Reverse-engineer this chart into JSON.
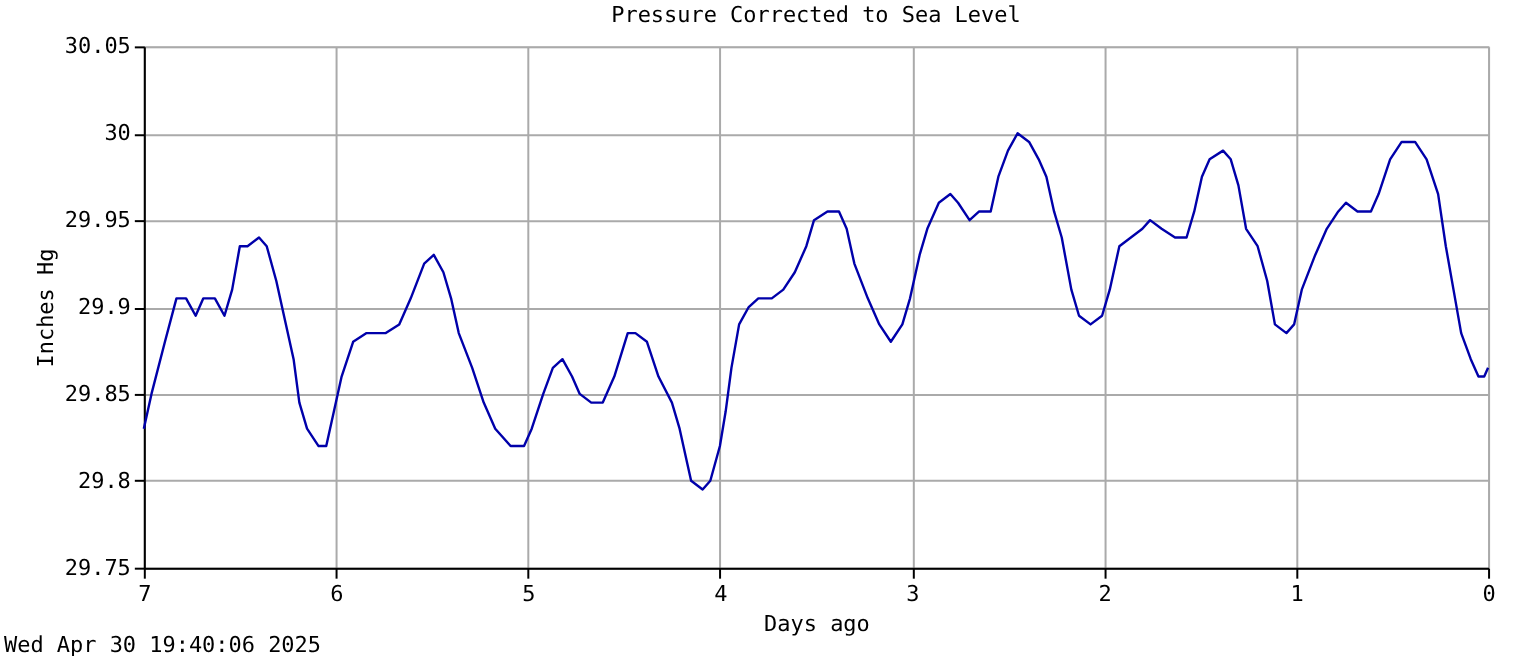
{
  "chart_data": {
    "type": "line",
    "title": "Pressure Corrected to Sea Level",
    "xlabel": "Days ago",
    "ylabel": "Inches Hg",
    "annotations": [
      "Wed Apr 30 19:40:06 2025"
    ],
    "xlim": [
      7,
      0
    ],
    "xticks": [
      7,
      6,
      5,
      4,
      3,
      2,
      1,
      0
    ],
    "ylim": [
      29.75,
      30.05
    ],
    "yticks": [
      29.75,
      29.8,
      29.85,
      29.9,
      29.95,
      30,
      30.05
    ],
    "grid": true,
    "line_style": "solid",
    "marker": "none",
    "series": [
      {
        "color": "#0000aa",
        "x": [
          7.0,
          6.96,
          6.89,
          6.83,
          6.78,
          6.73,
          6.69,
          6.63,
          6.58,
          6.54,
          6.5,
          6.46,
          6.4,
          6.36,
          6.31,
          6.26,
          6.22,
          6.19,
          6.15,
          6.09,
          6.05,
          6.01,
          5.97,
          5.91,
          5.84,
          5.8,
          5.74,
          5.67,
          5.61,
          5.54,
          5.49,
          5.44,
          5.4,
          5.36,
          5.29,
          5.23,
          5.17,
          5.09,
          5.02,
          4.98,
          4.92,
          4.87,
          4.82,
          4.77,
          4.73,
          4.67,
          4.61,
          4.55,
          4.48,
          4.44,
          4.38,
          4.32,
          4.25,
          4.21,
          4.17,
          4.15,
          4.09,
          4.05,
          4.0,
          3.97,
          3.94,
          3.9,
          3.85,
          3.8,
          3.73,
          3.67,
          3.61,
          3.55,
          3.51,
          3.44,
          3.38,
          3.34,
          3.3,
          3.23,
          3.17,
          3.11,
          3.05,
          3.01,
          2.96,
          2.92,
          2.86,
          2.8,
          2.76,
          2.7,
          2.65,
          2.59,
          2.55,
          2.5,
          2.45,
          2.39,
          2.34,
          2.3,
          2.26,
          2.22,
          2.17,
          2.13,
          2.07,
          2.01,
          1.97,
          1.92,
          1.86,
          1.8,
          1.76,
          1.7,
          1.63,
          1.57,
          1.53,
          1.49,
          1.45,
          1.38,
          1.34,
          1.3,
          1.26,
          1.2,
          1.15,
          1.11,
          1.05,
          1.01,
          0.97,
          0.9,
          0.84,
          0.78,
          0.74,
          0.68,
          0.61,
          0.57,
          0.51,
          0.45,
          0.38,
          0.32,
          0.26,
          0.22,
          0.18,
          0.14,
          0.09,
          0.05,
          0.02,
          0.0
        ],
        "values": [
          29.83,
          29.85,
          29.88,
          29.905,
          29.905,
          29.895,
          29.905,
          29.905,
          29.895,
          29.91,
          29.935,
          29.935,
          29.94,
          29.935,
          29.915,
          29.89,
          29.87,
          29.845,
          29.83,
          29.82,
          29.82,
          29.84,
          29.86,
          29.88,
          29.885,
          29.885,
          29.885,
          29.89,
          29.905,
          29.925,
          29.93,
          29.92,
          29.905,
          29.885,
          29.865,
          29.845,
          29.83,
          29.82,
          29.82,
          29.83,
          29.85,
          29.865,
          29.87,
          29.86,
          29.85,
          29.845,
          29.845,
          29.86,
          29.885,
          29.885,
          29.88,
          29.86,
          29.845,
          29.83,
          29.81,
          29.8,
          29.795,
          29.8,
          29.82,
          29.84,
          29.865,
          29.89,
          29.9,
          29.905,
          29.905,
          29.91,
          29.92,
          29.935,
          29.95,
          29.955,
          29.955,
          29.945,
          29.925,
          29.905,
          29.89,
          29.88,
          29.89,
          29.905,
          29.93,
          29.945,
          29.96,
          29.965,
          29.96,
          29.95,
          29.955,
          29.955,
          29.975,
          29.99,
          30.0,
          29.995,
          29.985,
          29.975,
          29.955,
          29.94,
          29.91,
          29.895,
          29.89,
          29.895,
          29.91,
          29.935,
          29.94,
          29.945,
          29.95,
          29.945,
          29.94,
          29.94,
          29.955,
          29.975,
          29.985,
          29.99,
          29.985,
          29.97,
          29.945,
          29.935,
          29.915,
          29.89,
          29.885,
          29.89,
          29.91,
          29.93,
          29.945,
          29.955,
          29.96,
          29.955,
          29.955,
          29.965,
          29.985,
          29.995,
          29.995,
          29.985,
          29.965,
          29.935,
          29.91,
          29.885,
          29.87,
          29.86,
          29.86,
          29.865
        ]
      }
    ]
  }
}
